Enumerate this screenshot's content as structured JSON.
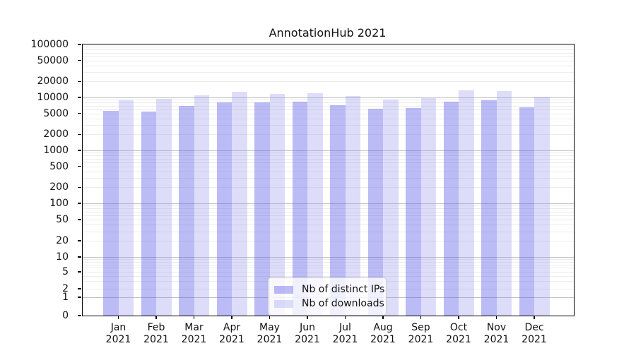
{
  "chart_data": {
    "type": "bar",
    "title": "AnnotationHub 2021",
    "categories": [
      "Jan",
      "Feb",
      "Mar",
      "Apr",
      "May",
      "Jun",
      "Jul",
      "Aug",
      "Sep",
      "Oct",
      "Nov",
      "Dec"
    ],
    "x_year_label": "2021",
    "series": [
      {
        "name": "Nb of distinct IPs",
        "color": "#aaaaf2",
        "color_rgba": "rgba(92,92,232,0.42)",
        "values": [
          5600,
          5400,
          6900,
          8100,
          8000,
          8300,
          7200,
          6200,
          6300,
          8400,
          8900,
          6600
        ]
      },
      {
        "name": "Nb of downloads",
        "color": "#dcdcf8",
        "color_rgba": "rgba(150,150,240,0.32)",
        "values": [
          8900,
          9300,
          10900,
          12700,
          11800,
          12200,
          10600,
          9100,
          9600,
          13500,
          13100,
          10200
        ]
      }
    ],
    "yscale": "symlog",
    "ylim": [
      0,
      100000
    ],
    "y_ticks": [
      100000,
      50000,
      20000,
      10000,
      5000,
      2000,
      1000,
      500,
      200,
      100,
      50,
      20,
      10,
      5,
      2,
      1,
      0
    ],
    "grid": "on",
    "legend_position": "lower center",
    "xlabel": "",
    "ylabel": ""
  }
}
